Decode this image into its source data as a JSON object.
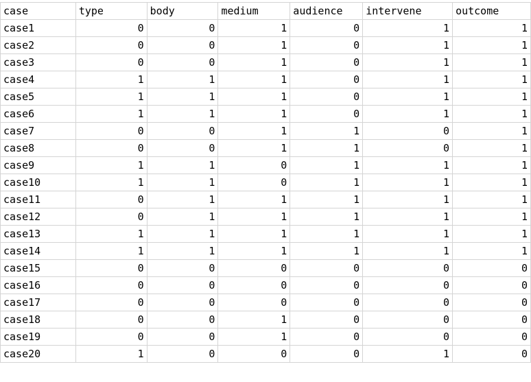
{
  "columns": [
    "case",
    "type",
    "body",
    "medium",
    "audience",
    "intervene",
    "outcome"
  ],
  "rows": [
    [
      "case1",
      "0",
      "0",
      "1",
      "0",
      "1",
      "1"
    ],
    [
      "case2",
      "0",
      "0",
      "1",
      "0",
      "1",
      "1"
    ],
    [
      "case3",
      "0",
      "0",
      "1",
      "0",
      "1",
      "1"
    ],
    [
      "case4",
      "1",
      "1",
      "1",
      "0",
      "1",
      "1"
    ],
    [
      "case5",
      "1",
      "1",
      "1",
      "0",
      "1",
      "1"
    ],
    [
      "case6",
      "1",
      "1",
      "1",
      "0",
      "1",
      "1"
    ],
    [
      "case7",
      "0",
      "0",
      "1",
      "1",
      "0",
      "1"
    ],
    [
      "case8",
      "0",
      "0",
      "1",
      "1",
      "0",
      "1"
    ],
    [
      "case9",
      "1",
      "1",
      "0",
      "1",
      "1",
      "1"
    ],
    [
      "case10",
      "1",
      "1",
      "0",
      "1",
      "1",
      "1"
    ],
    [
      "case11",
      "0",
      "1",
      "1",
      "1",
      "1",
      "1"
    ],
    [
      "case12",
      "0",
      "1",
      "1",
      "1",
      "1",
      "1"
    ],
    [
      "case13",
      "1",
      "1",
      "1",
      "1",
      "1",
      "1"
    ],
    [
      "case14",
      "1",
      "1",
      "1",
      "1",
      "1",
      "1"
    ],
    [
      "case15",
      "0",
      "0",
      "0",
      "0",
      "0",
      "0"
    ],
    [
      "case16",
      "0",
      "0",
      "0",
      "0",
      "0",
      "0"
    ],
    [
      "case17",
      "0",
      "0",
      "0",
      "0",
      "0",
      "0"
    ],
    [
      "case18",
      "0",
      "0",
      "1",
      "0",
      "0",
      "0"
    ],
    [
      "case19",
      "0",
      "0",
      "1",
      "0",
      "0",
      "0"
    ],
    [
      "case20",
      "1",
      "0",
      "0",
      "0",
      "1",
      "0"
    ]
  ]
}
